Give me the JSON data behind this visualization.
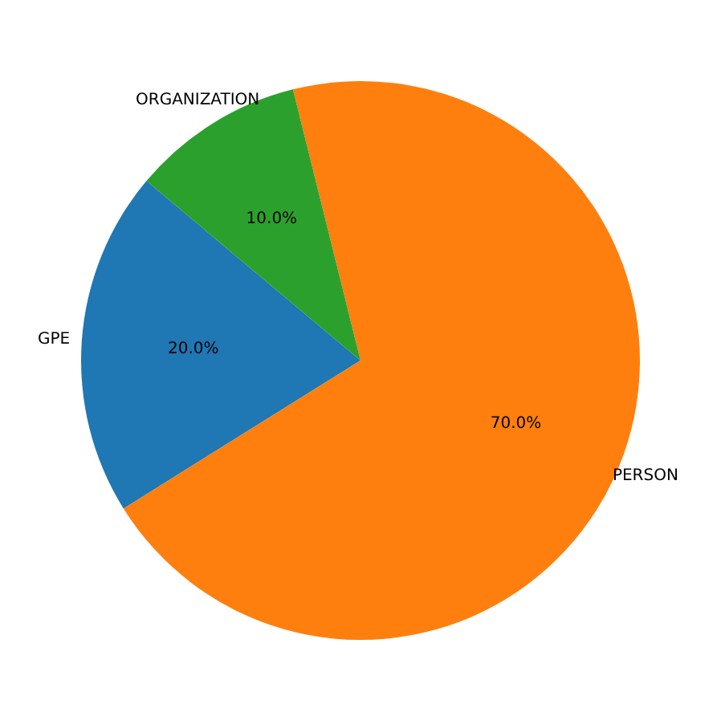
{
  "chart_data": {
    "type": "pie",
    "categories": [
      "GPE",
      "PERSON",
      "ORGANIZATION"
    ],
    "values": [
      20,
      70,
      10
    ],
    "colors": [
      "#1f77b4",
      "#ff7f0e",
      "#2ca02c"
    ],
    "value_labels": [
      "20.0%",
      "70.0%",
      "10.0%"
    ],
    "legend": false
  }
}
